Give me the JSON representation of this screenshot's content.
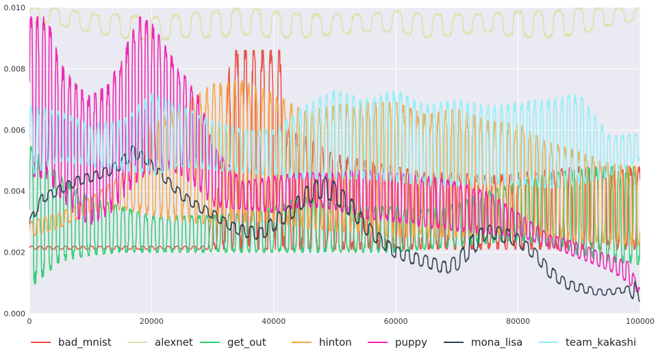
{
  "chart_data": {
    "type": "line",
    "title": "",
    "xlabel": "",
    "ylabel": "",
    "xlim": [
      0,
      100000
    ],
    "ylim": [
      0.0,
      0.01
    ],
    "xticks": [
      0,
      20000,
      40000,
      60000,
      80000,
      100000
    ],
    "xtick_labels": [
      "0",
      "20000",
      "40000",
      "60000",
      "80000",
      "100000"
    ],
    "yticks": [
      0.0,
      0.002,
      0.004,
      0.006,
      0.008,
      0.01
    ],
    "ytick_labels": [
      "0.000",
      "0.002",
      "0.004",
      "0.006",
      "0.008",
      "0.010"
    ],
    "grid": true,
    "legend_position": "bottom",
    "series": [
      {
        "name": "bad_mnist",
        "color": "#e74c3c",
        "x": [
          0,
          5000,
          10000,
          15000,
          20000,
          25000,
          29000,
          31000,
          33000,
          35000,
          37000,
          39000,
          41000,
          42000,
          45000,
          50000,
          55000,
          60000,
          65000,
          70000,
          75000,
          80000,
          85000,
          90000,
          95000,
          100000
        ],
        "low": [
          0.0021,
          0.0021,
          0.0021,
          0.0021,
          0.0021,
          0.0021,
          0.0021,
          0.0021,
          0.0021,
          0.0021,
          0.0021,
          0.0021,
          0.0021,
          0.0021,
          0.0021,
          0.0021,
          0.0021,
          0.0021,
          0.0021,
          0.0021,
          0.0021,
          0.0021,
          0.0021,
          0.0021,
          0.0021,
          0.0021
        ],
        "high": [
          0.0022,
          0.0022,
          0.0022,
          0.0022,
          0.0022,
          0.0022,
          0.0022,
          0.0045,
          0.0086,
          0.0086,
          0.0086,
          0.0086,
          0.0086,
          0.0062,
          0.0058,
          0.0052,
          0.005,
          0.0048,
          0.0046,
          0.0046,
          0.0045,
          0.0046,
          0.0047,
          0.0048,
          0.0048,
          0.0048
        ]
      },
      {
        "name": "alexnet",
        "color": "#e2dfa8",
        "x": [
          0,
          5000,
          10000,
          15000,
          20000,
          25000,
          30000,
          35000,
          40000,
          45000,
          50000,
          55000,
          60000,
          65000,
          70000,
          75000,
          80000,
          85000,
          90000,
          95000,
          100000
        ],
        "low": [
          0.0096,
          0.0094,
          0.0092,
          0.009,
          0.0089,
          0.009,
          0.009,
          0.0091,
          0.009,
          0.009,
          0.0091,
          0.0092,
          0.0092,
          0.009,
          0.0091,
          0.0092,
          0.009,
          0.009,
          0.0091,
          0.0094,
          0.0096
        ],
        "high": [
          0.01,
          0.01,
          0.0098,
          0.0098,
          0.0097,
          0.0098,
          0.0099,
          0.01,
          0.0099,
          0.0098,
          0.0098,
          0.0098,
          0.0099,
          0.0098,
          0.0098,
          0.0098,
          0.0099,
          0.0099,
          0.01,
          0.01,
          0.01
        ]
      },
      {
        "name": "get_out",
        "color": "#2ecc71",
        "x": [
          0,
          5000,
          10000,
          15000,
          20000,
          25000,
          30000,
          35000,
          40000,
          45000,
          50000,
          55000,
          60000,
          65000,
          70000,
          75000,
          80000,
          85000,
          90000,
          95000,
          100000
        ],
        "low": [
          0.0008,
          0.0017,
          0.0019,
          0.002,
          0.002,
          0.002,
          0.002,
          0.002,
          0.002,
          0.002,
          0.002,
          0.002,
          0.002,
          0.0021,
          0.0022,
          0.0023,
          0.0024,
          0.0022,
          0.0019,
          0.0017,
          0.0016
        ],
        "high": [
          0.0055,
          0.0045,
          0.0038,
          0.0035,
          0.0032,
          0.0032,
          0.0032,
          0.0033,
          0.0035,
          0.0038,
          0.0036,
          0.0035,
          0.0035,
          0.0034,
          0.0036,
          0.004,
          0.0043,
          0.0046,
          0.0047,
          0.0048,
          0.0048
        ]
      },
      {
        "name": "hinton",
        "color": "#f5a742",
        "x": [
          0,
          5000,
          10000,
          15000,
          20000,
          25000,
          30000,
          35000,
          40000,
          45000,
          50000,
          55000,
          60000,
          65000,
          70000,
          75000,
          80000,
          85000,
          90000,
          95000,
          100000
        ],
        "low": [
          0.0025,
          0.0028,
          0.0033,
          0.0034,
          0.0032,
          0.003,
          0.0029,
          0.003,
          0.003,
          0.0028,
          0.0027,
          0.0026,
          0.0025,
          0.0025,
          0.0025,
          0.0026,
          0.0026,
          0.0025,
          0.0024,
          0.0023,
          0.0022
        ],
        "high": [
          0.003,
          0.0033,
          0.0038,
          0.0045,
          0.0062,
          0.0068,
          0.0075,
          0.0076,
          0.0072,
          0.0066,
          0.0068,
          0.0069,
          0.0069,
          0.0065,
          0.0067,
          0.0063,
          0.0062,
          0.0056,
          0.0053,
          0.0049,
          0.0048
        ]
      },
      {
        "name": "puppy",
        "color": "#f01db1",
        "x": [
          0,
          3000,
          5000,
          8000,
          10000,
          13000,
          15000,
          18000,
          20000,
          23000,
          25000,
          28000,
          30000,
          35000,
          40000,
          45000,
          50000,
          55000,
          60000,
          65000,
          70000,
          75000,
          80000,
          85000,
          90000,
          95000,
          98000,
          100000
        ],
        "low": [
          0.0045,
          0.0044,
          0.0038,
          0.0031,
          0.0029,
          0.0032,
          0.0037,
          0.0044,
          0.0046,
          0.0047,
          0.0045,
          0.004,
          0.0035,
          0.0034,
          0.0033,
          0.0035,
          0.0034,
          0.0031,
          0.003,
          0.0028,
          0.0027,
          0.0026,
          0.0025,
          0.0022,
          0.0018,
          0.0014,
          0.001,
          0.0006
        ],
        "high": [
          0.0097,
          0.0097,
          0.0082,
          0.0074,
          0.0071,
          0.0075,
          0.0084,
          0.0097,
          0.0095,
          0.0085,
          0.0079,
          0.007,
          0.0055,
          0.0043,
          0.0045,
          0.0046,
          0.0046,
          0.0047,
          0.0046,
          0.0045,
          0.0043,
          0.004,
          0.0033,
          0.0026,
          0.0023,
          0.0019,
          0.0017,
          0.0008
        ]
      },
      {
        "name": "mona_lisa",
        "color": "#2c3e50",
        "x": [
          0,
          2000,
          5000,
          8000,
          10000,
          13000,
          15000,
          17000,
          19000,
          21000,
          23000,
          25000,
          28000,
          30000,
          33000,
          35000,
          38000,
          40000,
          43000,
          45000,
          48000,
          50000,
          53000,
          55000,
          58000,
          60000,
          63000,
          65000,
          68000,
          70000,
          73000,
          75000,
          78000,
          80000,
          83000,
          85000,
          88000,
          90000,
          93000,
          95000,
          98000,
          99000,
          100000
        ],
        "low": [
          0.0028,
          0.0036,
          0.0039,
          0.0042,
          0.0043,
          0.0045,
          0.0047,
          0.0051,
          0.0049,
          0.0045,
          0.0041,
          0.0037,
          0.0033,
          0.0031,
          0.0027,
          0.0025,
          0.0024,
          0.0027,
          0.0031,
          0.0035,
          0.0038,
          0.0036,
          0.0031,
          0.0026,
          0.0021,
          0.0018,
          0.0016,
          0.0015,
          0.0013,
          0.0014,
          0.002,
          0.0025,
          0.0023,
          0.0022,
          0.0017,
          0.0012,
          0.0008,
          0.0007,
          0.0006,
          0.0006,
          0.0007,
          0.0004,
          0.0004
        ],
        "high": [
          0.0031,
          0.0039,
          0.0042,
          0.0045,
          0.0046,
          0.0048,
          0.0051,
          0.0055,
          0.0052,
          0.0048,
          0.0044,
          0.004,
          0.0036,
          0.0034,
          0.003,
          0.0029,
          0.0028,
          0.0032,
          0.0036,
          0.0041,
          0.0045,
          0.0043,
          0.0037,
          0.0031,
          0.0025,
          0.0022,
          0.002,
          0.0019,
          0.0017,
          0.0019,
          0.0027,
          0.0029,
          0.0028,
          0.0026,
          0.0021,
          0.0016,
          0.0011,
          0.001,
          0.0008,
          0.0008,
          0.0009,
          0.0012,
          0.0004
        ]
      },
      {
        "name": "team_kakashi",
        "color": "#8ff0f7",
        "x": [
          0,
          5000,
          10000,
          15000,
          20000,
          25000,
          30000,
          35000,
          40000,
          45000,
          50000,
          55000,
          60000,
          65000,
          70000,
          75000,
          80000,
          85000,
          90000,
          95000,
          100000
        ],
        "low": [
          0.0045,
          0.005,
          0.0048,
          0.0047,
          0.0045,
          0.0048,
          0.0047,
          0.0046,
          0.0045,
          0.0044,
          0.0044,
          0.0044,
          0.0043,
          0.0042,
          0.0042,
          0.0042,
          0.0042,
          0.0041,
          0.0042,
          0.0045,
          0.005
        ],
        "high": [
          0.0068,
          0.0066,
          0.0062,
          0.0063,
          0.0072,
          0.0068,
          0.0063,
          0.006,
          0.006,
          0.0068,
          0.0073,
          0.007,
          0.0073,
          0.0068,
          0.007,
          0.0068,
          0.0069,
          0.007,
          0.0072,
          0.0058,
          0.0059
        ]
      }
    ]
  }
}
